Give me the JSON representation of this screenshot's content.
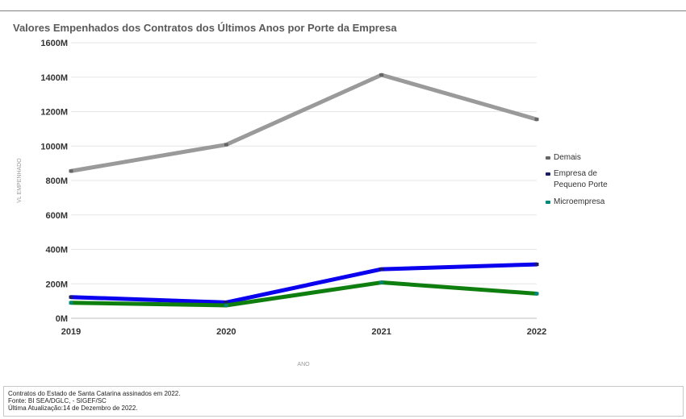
{
  "chart_data": {
    "type": "line",
    "title": "Valores Empenhados dos Contratos dos Últimos Anos por Porte da Empresa",
    "xlabel": "ANO",
    "ylabel": "VL EMPENHADO",
    "x": [
      "2019",
      "2020",
      "2021",
      "2022"
    ],
    "y_ticks": [
      "0M",
      "200M",
      "400M",
      "600M",
      "800M",
      "1000M",
      "1200M",
      "1400M",
      "1600M"
    ],
    "ylim": [
      0,
      1600
    ],
    "y_unit": "M",
    "grid": true,
    "legend_position": "right",
    "series": [
      {
        "name": "Demais",
        "values": [
          855,
          1008,
          1413,
          1155
        ],
        "color": "#9a9a9a",
        "marker_color": "#666666"
      },
      {
        "name": "Empresa de Pequeno Porte",
        "values": [
          123,
          92,
          285,
          313
        ],
        "color": "#0a00ee",
        "marker_color": "#1a1a66"
      },
      {
        "name": "Microempresa",
        "values": [
          90,
          75,
          208,
          143
        ],
        "color": "#0e7f0e",
        "marker_color": "#00877a"
      }
    ]
  },
  "footer": {
    "line1": "Contratos do Estado de Santa Catarina assinados em 2022.",
    "line2": "Fonte: BI SEA/DGLC, - SIGEF/SC",
    "line3": "Última Atualização:14 de Dezembro de 2022."
  }
}
